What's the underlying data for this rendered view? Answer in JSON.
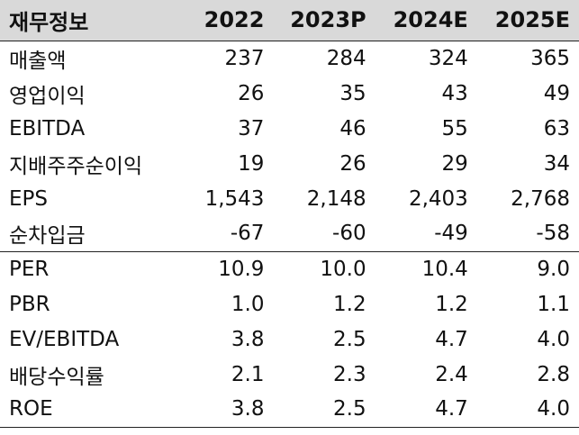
{
  "table": {
    "header": [
      "재무정보",
      "2022",
      "2023P",
      "2024E",
      "2025E"
    ],
    "rows": [
      {
        "label": "매출액",
        "values": [
          "237",
          "284",
          "324",
          "365"
        ]
      },
      {
        "label": "영업이익",
        "values": [
          "26",
          "35",
          "43",
          "49"
        ]
      },
      {
        "label": "EBITDA",
        "values": [
          "37",
          "46",
          "55",
          "63"
        ]
      },
      {
        "label": "지배주주순이익",
        "values": [
          "19",
          "26",
          "29",
          "34"
        ]
      },
      {
        "label": "EPS",
        "values": [
          "1,543",
          "2,148",
          "2,403",
          "2,768"
        ]
      },
      {
        "label": "순차입금",
        "values": [
          "-67",
          "-60",
          "-49",
          "-58"
        ]
      },
      {
        "label": "PER",
        "values": [
          "10.9",
          "10.0",
          "10.4",
          "9.0"
        ]
      },
      {
        "label": "PBR",
        "values": [
          "1.0",
          "1.2",
          "1.2",
          "1.1"
        ]
      },
      {
        "label": "EV/EBITDA",
        "values": [
          "3.8",
          "2.5",
          "4.7",
          "4.0"
        ]
      },
      {
        "label": "배당수익률",
        "values": [
          "2.1",
          "2.3",
          "2.4",
          "2.8"
        ]
      },
      {
        "label": "ROE",
        "values": [
          "3.8",
          "2.5",
          "4.7",
          "4.0"
        ]
      }
    ]
  }
}
